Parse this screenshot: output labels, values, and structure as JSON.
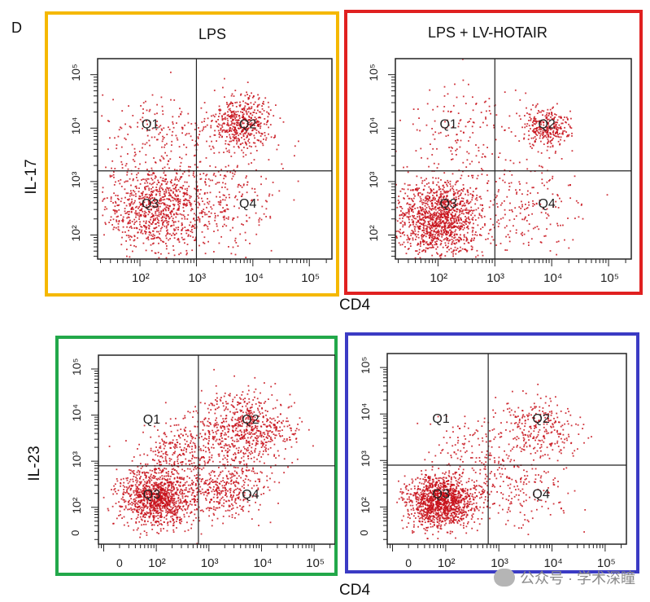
{
  "panel_label": "D",
  "shared_labels": {
    "cd4_top": "CD4",
    "cd4_bottom": "CD4",
    "il17": "IL-17",
    "il23": "IL-23"
  },
  "watermark": "公众号 · 学术深瞳",
  "colors": {
    "dots": "#c8101a",
    "frame_lps_il17": "#f5b800",
    "frame_hotair_il17": "#e02020",
    "frame_lps_il23": "#22a84a",
    "frame_hotair_il23": "#3b3bc4"
  },
  "chart_data": [
    {
      "type": "scatter",
      "title": "LPS",
      "xlabel": "CD4",
      "ylabel": "IL-17",
      "x_scale": "log",
      "y_scale": "log",
      "x_tick_labels": [
        "10²",
        "10³",
        "10⁴",
        "10⁵"
      ],
      "y_tick_labels": [
        "10²",
        "10³",
        "10⁴",
        "10⁵"
      ],
      "quadrant_gates": {
        "x": 3.0,
        "y": 3.2
      },
      "quadrant_labels": [
        "Q1",
        "Q2",
        "Q3",
        "Q4"
      ],
      "clusters": [
        {
          "quadrant": "Q3",
          "x_center": 2.3,
          "y_center": 2.5,
          "spread": 0.45,
          "n": 900
        },
        {
          "quadrant": "Q2",
          "x_center": 3.8,
          "y_center": 4.1,
          "spread": 0.28,
          "n": 500
        },
        {
          "quadrant": "Q4",
          "x_center": 3.5,
          "y_center": 2.6,
          "spread": 0.5,
          "n": 250
        },
        {
          "quadrant": "Q1",
          "x_center": 2.4,
          "y_center": 3.9,
          "spread": 0.45,
          "n": 180
        }
      ]
    },
    {
      "type": "scatter",
      "title": "LPS + LV-HOTAIR",
      "xlabel": "CD4",
      "ylabel": "IL-17",
      "x_scale": "log",
      "y_scale": "log",
      "x_tick_labels": [
        "10²",
        "10³",
        "10⁴",
        "10⁵"
      ],
      "y_tick_labels": [
        "10²",
        "10³",
        "10⁴",
        "10⁵"
      ],
      "quadrant_gates": {
        "x": 3.0,
        "y": 3.2
      },
      "quadrant_labels": [
        "Q1",
        "Q2",
        "Q3",
        "Q4"
      ],
      "clusters": [
        {
          "quadrant": "Q3",
          "x_center": 2.0,
          "y_center": 2.3,
          "spread": 0.4,
          "n": 1300
        },
        {
          "quadrant": "Q2",
          "x_center": 3.9,
          "y_center": 4.0,
          "spread": 0.2,
          "n": 300
        },
        {
          "quadrant": "Q4",
          "x_center": 3.5,
          "y_center": 2.6,
          "spread": 0.5,
          "n": 200
        },
        {
          "quadrant": "Q1",
          "x_center": 2.5,
          "y_center": 4.0,
          "spread": 0.5,
          "n": 160
        }
      ]
    },
    {
      "type": "scatter",
      "title": "",
      "xlabel": "CD4",
      "ylabel": "IL-23",
      "x_scale": "log",
      "y_scale": "log",
      "x_tick_labels": [
        "0",
        "10²",
        "10³",
        "10⁴",
        "10⁵"
      ],
      "y_tick_labels": [
        "0",
        "10²",
        "10³",
        "10⁴",
        "10⁵"
      ],
      "quadrant_gates": {
        "x": 2.8,
        "y": 2.9
      },
      "quadrant_labels": [
        "Q1",
        "Q2",
        "Q3",
        "Q4"
      ],
      "clusters": [
        {
          "quadrant": "Q3",
          "x_center": 2.0,
          "y_center": 2.2,
          "spread": 0.35,
          "n": 1100
        },
        {
          "quadrant": "Q2",
          "x_center": 3.7,
          "y_center": 3.7,
          "spread": 0.45,
          "n": 700
        },
        {
          "quadrant": "Q4",
          "x_center": 3.3,
          "y_center": 2.4,
          "spread": 0.4,
          "n": 400
        },
        {
          "quadrant": "Q1",
          "x_center": 2.4,
          "y_center": 3.2,
          "spread": 0.35,
          "n": 250
        }
      ]
    },
    {
      "type": "scatter",
      "title": "",
      "xlabel": "CD4",
      "ylabel": "IL-23",
      "x_scale": "log",
      "y_scale": "log",
      "x_tick_labels": [
        "0",
        "10²",
        "10³",
        "10⁴",
        "10⁵"
      ],
      "y_tick_labels": [
        "0",
        "10²",
        "10³",
        "10⁴",
        "10⁵"
      ],
      "quadrant_gates": {
        "x": 2.8,
        "y": 2.9
      },
      "quadrant_labels": [
        "Q1",
        "Q2",
        "Q3",
        "Q4"
      ],
      "clusters": [
        {
          "quadrant": "Q3",
          "x_center": 1.9,
          "y_center": 2.1,
          "spread": 0.32,
          "n": 1300
        },
        {
          "quadrant": "Q2",
          "x_center": 3.8,
          "y_center": 3.7,
          "spread": 0.4,
          "n": 280
        },
        {
          "quadrant": "Q4",
          "x_center": 3.3,
          "y_center": 2.4,
          "spread": 0.45,
          "n": 200
        },
        {
          "quadrant": "Q1",
          "x_center": 2.5,
          "y_center": 3.3,
          "spread": 0.4,
          "n": 120
        }
      ]
    }
  ]
}
